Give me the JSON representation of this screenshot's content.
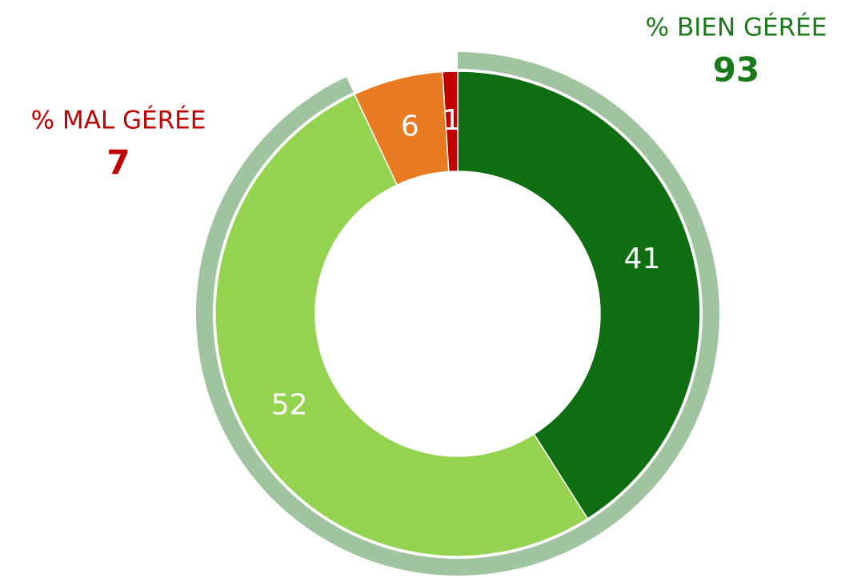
{
  "chart_data": {
    "type": "donut",
    "categories": [
      null,
      null,
      null,
      null
    ],
    "values": [
      41,
      52,
      6,
      1
    ],
    "colors": [
      "#0f6e12",
      "#94d350",
      "#e87b22",
      "#c00000"
    ],
    "groups": [
      {
        "label": "% BIEN GÉRÉE",
        "value": 93,
        "color": "#1a7a1a",
        "ring_color": "#a0c4a0"
      },
      {
        "label": "% MAL GÉRÉE",
        "value": 7,
        "color": "#c00000"
      }
    ]
  }
}
